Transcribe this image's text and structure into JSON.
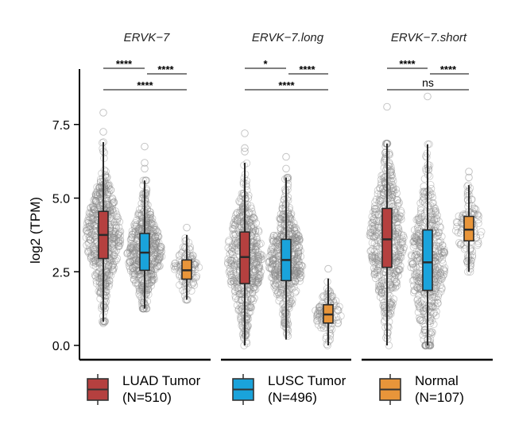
{
  "chart_data": {
    "type": "box",
    "ylabel": "log2 (TPM)",
    "ylim": [
      0,
      8.5
    ],
    "yticks": [
      0.0,
      2.5,
      5.0,
      7.5
    ],
    "ytick_labels": [
      "0.0",
      "2.5",
      "5.0",
      "7.5"
    ],
    "groups": [
      {
        "name": "LUAD Tumor",
        "n_label": "(N=510)",
        "n": 510,
        "color": "#B5403F"
      },
      {
        "name": "LUSC Tumor",
        "n_label": "(N=496)",
        "n": 496,
        "color": "#1AA3DB"
      },
      {
        "name": "Normal",
        "n_label": "(N=107)",
        "n": 107,
        "color": "#E8953A"
      }
    ],
    "legend_position": "bottom",
    "panels": [
      {
        "title": "ERVK−7",
        "boxes": [
          {
            "q1": 2.95,
            "median": 3.75,
            "q3": 4.55,
            "whisker_low": 0.8,
            "whisker_high": 6.9,
            "outliers": [
              7.25,
              7.9,
              0.75
            ]
          },
          {
            "q1": 2.55,
            "median": 3.15,
            "q3": 3.8,
            "whisker_low": 1.25,
            "whisker_high": 5.6,
            "outliers": [
              6.0,
              6.2,
              6.75
            ]
          },
          {
            "q1": 2.25,
            "median": 2.55,
            "q3": 2.9,
            "whisker_low": 1.55,
            "whisker_high": 3.75,
            "outliers": [
              4.0
            ]
          }
        ],
        "comparisons": [
          {
            "groups": [
              0,
              1
            ],
            "label": "****"
          },
          {
            "groups": [
              1,
              2
            ],
            "label": "****"
          },
          {
            "groups": [
              0,
              2
            ],
            "label": "****"
          }
        ]
      },
      {
        "title": "ERVK−7.long",
        "boxes": [
          {
            "q1": 2.1,
            "median": 3.0,
            "q3": 3.85,
            "whisker_low": 0.0,
            "whisker_high": 6.2,
            "outliers": [
              7.2,
              6.7,
              6.58
            ]
          },
          {
            "q1": 2.2,
            "median": 2.9,
            "q3": 3.6,
            "whisker_low": 0.2,
            "whisker_high": 5.7,
            "outliers": [
              6.4,
              6.0
            ]
          },
          {
            "q1": 0.76,
            "median": 1.05,
            "q3": 1.38,
            "whisker_low": 0.0,
            "whisker_high": 2.27,
            "outliers": [
              2.6
            ]
          }
        ],
        "comparisons": [
          {
            "groups": [
              0,
              1
            ],
            "label": "*"
          },
          {
            "groups": [
              1,
              2
            ],
            "label": "****"
          },
          {
            "groups": [
              0,
              2
            ],
            "label": "****"
          }
        ]
      },
      {
        "title": "ERVK−7.short",
        "boxes": [
          {
            "q1": 2.65,
            "median": 3.6,
            "q3": 4.65,
            "whisker_low": 0.0,
            "whisker_high": 6.85,
            "outliers": [
              8.1
            ]
          },
          {
            "q1": 1.87,
            "median": 2.82,
            "q3": 3.92,
            "whisker_low": 0.0,
            "whisker_high": 6.83,
            "outliers": [
              8.45
            ]
          },
          {
            "q1": 3.55,
            "median": 3.93,
            "q3": 4.38,
            "whisker_low": 2.5,
            "whisker_high": 5.44,
            "outliers": [
              5.7,
              5.9
            ]
          }
        ],
        "comparisons": [
          {
            "groups": [
              0,
              1
            ],
            "label": "****"
          },
          {
            "groups": [
              1,
              2
            ],
            "label": "****"
          },
          {
            "groups": [
              0,
              2
            ],
            "label": "ns"
          }
        ]
      }
    ]
  }
}
